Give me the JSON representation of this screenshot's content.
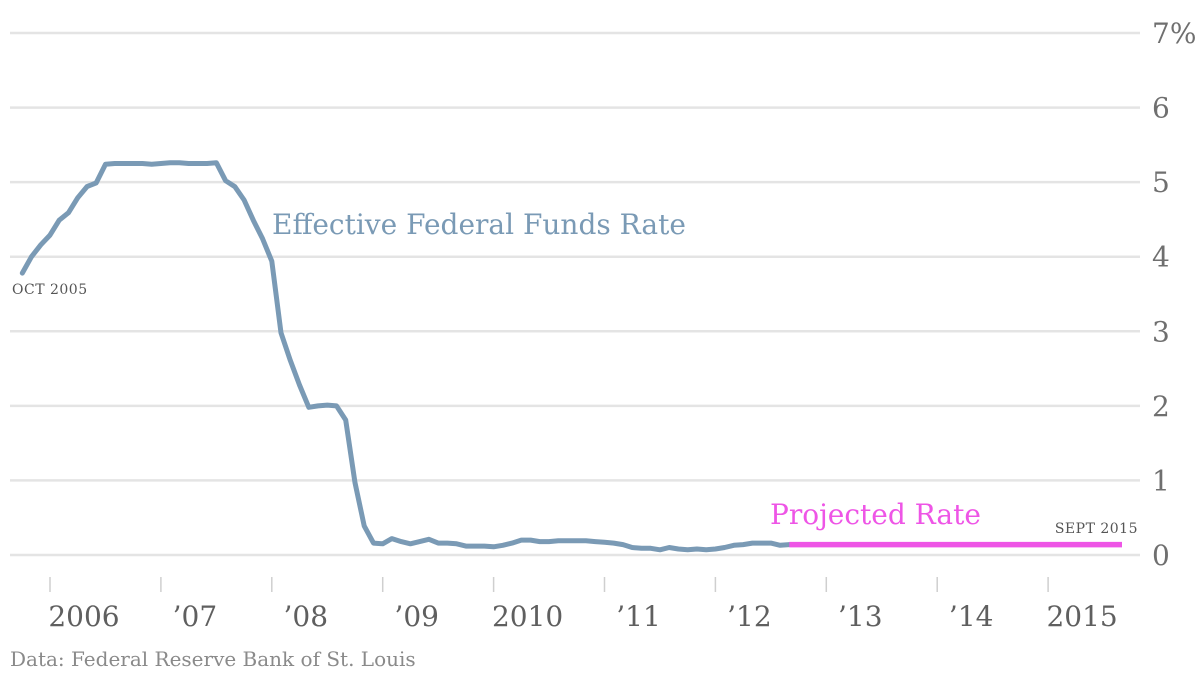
{
  "chart_data": {
    "type": "line",
    "xlabel": "",
    "ylabel": "",
    "ylim": [
      0,
      7
    ],
    "y_ticks": [
      "7%",
      "6",
      "5",
      "4",
      "3",
      "2",
      "1",
      "0"
    ],
    "x_ticks": [
      "2006",
      "’07",
      "’08",
      "’09",
      "2010",
      "’11",
      "’12",
      "’13",
      "’14",
      "2015"
    ],
    "grid": true,
    "series": [
      {
        "name": "Effective Federal Funds Rate",
        "color": "#7a9ab5",
        "x": [
          "2005-10",
          "2005-11",
          "2005-12",
          "2006-01",
          "2006-02",
          "2006-03",
          "2006-04",
          "2006-05",
          "2006-06",
          "2006-07",
          "2006-08",
          "2006-09",
          "2006-10",
          "2006-11",
          "2006-12",
          "2007-01",
          "2007-02",
          "2007-03",
          "2007-04",
          "2007-05",
          "2007-06",
          "2007-07",
          "2007-08",
          "2007-09",
          "2007-10",
          "2007-11",
          "2007-12",
          "2008-01",
          "2008-02",
          "2008-03",
          "2008-04",
          "2008-05",
          "2008-06",
          "2008-07",
          "2008-08",
          "2008-09",
          "2008-10",
          "2008-11",
          "2008-12",
          "2009-01",
          "2009-02",
          "2009-03",
          "2009-04",
          "2009-05",
          "2009-06",
          "2009-07",
          "2009-08",
          "2009-09",
          "2009-10",
          "2009-11",
          "2009-12",
          "2010-01",
          "2010-02",
          "2010-03",
          "2010-04",
          "2010-05",
          "2010-06",
          "2010-07",
          "2010-08",
          "2010-09",
          "2010-10",
          "2010-11",
          "2010-12",
          "2011-01",
          "2011-02",
          "2011-03",
          "2011-04",
          "2011-05",
          "2011-06",
          "2011-07",
          "2011-08",
          "2011-09",
          "2011-10",
          "2011-11",
          "2011-12",
          "2012-01",
          "2012-02",
          "2012-03",
          "2012-04",
          "2012-05",
          "2012-06",
          "2012-07",
          "2012-08",
          "2012-09"
        ],
        "values": [
          3.78,
          4.0,
          4.16,
          4.29,
          4.49,
          4.59,
          4.79,
          4.94,
          4.99,
          5.24,
          5.25,
          5.25,
          5.25,
          5.25,
          5.24,
          5.25,
          5.26,
          5.26,
          5.25,
          5.25,
          5.25,
          5.26,
          5.02,
          4.94,
          4.76,
          4.49,
          4.24,
          3.94,
          2.98,
          2.61,
          2.28,
          1.98,
          2.0,
          2.01,
          2.0,
          1.81,
          0.97,
          0.39,
          0.16,
          0.15,
          0.22,
          0.18,
          0.15,
          0.18,
          0.21,
          0.16,
          0.16,
          0.15,
          0.12,
          0.12,
          0.12,
          0.11,
          0.13,
          0.16,
          0.2,
          0.2,
          0.18,
          0.18,
          0.19,
          0.19,
          0.19,
          0.19,
          0.18,
          0.17,
          0.16,
          0.14,
          0.1,
          0.09,
          0.09,
          0.07,
          0.1,
          0.08,
          0.07,
          0.08,
          0.07,
          0.08,
          0.1,
          0.13,
          0.14,
          0.16,
          0.16,
          0.16,
          0.13,
          0.14
        ]
      },
      {
        "name": "Projected Rate",
        "color": "#ee55e6",
        "x": [
          "2012-09",
          "2015-09"
        ],
        "values": [
          0.14,
          0.14
        ]
      }
    ],
    "annotations": {
      "start": "OCT 2005",
      "end": "SEPT 2015"
    }
  },
  "source_note": "Data: Federal Reserve Bank of St. Louis"
}
